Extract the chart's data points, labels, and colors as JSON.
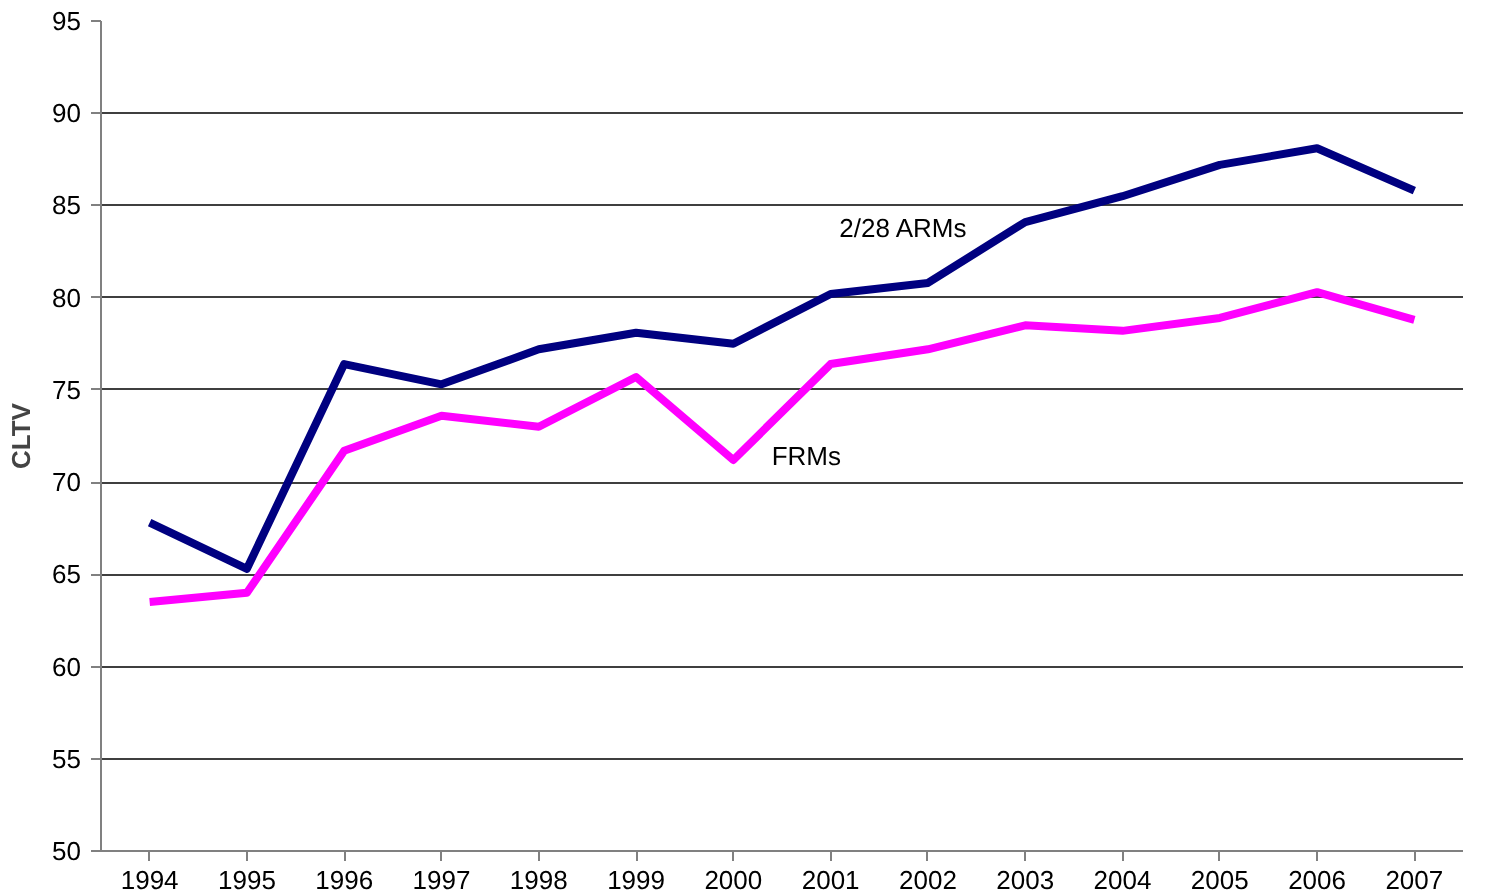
{
  "chart_data": {
    "type": "line",
    "ylabel": "CLTV",
    "categories": [
      "1994",
      "1995",
      "1996",
      "1997",
      "1998",
      "1999",
      "2000",
      "2001",
      "2002",
      "2003",
      "2004",
      "2005",
      "2006",
      "2007"
    ],
    "series": [
      {
        "name": "2/28 ARMs",
        "color": "#000080",
        "values": [
          67.8,
          65.3,
          76.4,
          75.3,
          77.2,
          78.1,
          77.5,
          80.2,
          80.8,
          84.1,
          85.5,
          87.2,
          88.1,
          85.8
        ]
      },
      {
        "name": "FRMs",
        "color": "#ff00ff",
        "values": [
          63.5,
          64.0,
          71.7,
          73.6,
          73.0,
          75.7,
          71.2,
          76.4,
          77.2,
          78.5,
          78.2,
          78.9,
          80.3,
          78.8
        ]
      }
    ],
    "ylim": [
      50,
      95
    ],
    "yticks": [
      50,
      55,
      60,
      65,
      70,
      75,
      80,
      85,
      90,
      95
    ],
    "grid": "y",
    "marker": "none",
    "line_style": "solid"
  }
}
